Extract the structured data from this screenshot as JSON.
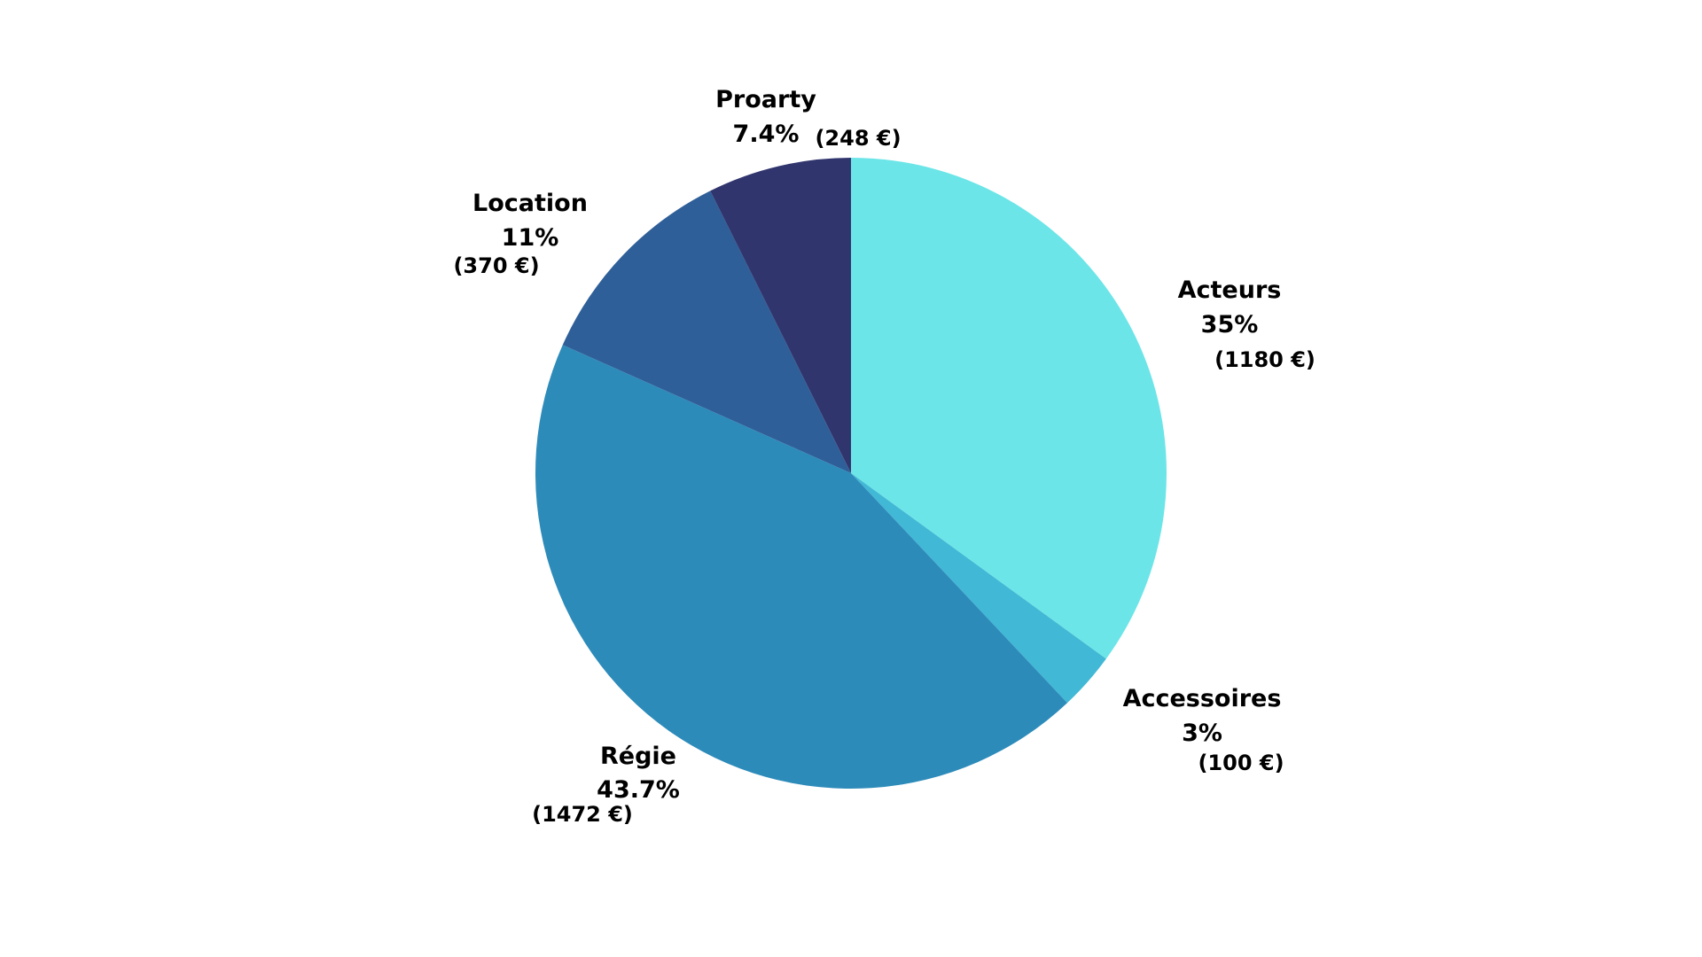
{
  "chart_data": {
    "type": "pie",
    "title": "",
    "start_angle_deg": 0,
    "direction": "clockwise",
    "slices": [
      {
        "name": "Acteurs",
        "percent_label": "35%",
        "value": 1180,
        "value_label": "(1180 €)",
        "color": "#6ce5e8"
      },
      {
        "name": "Accessoires",
        "percent_label": "3%",
        "value": 100,
        "value_label": "(100 €)",
        "color": "#41b8d5"
      },
      {
        "name": "Régie",
        "percent_label": "43.7%",
        "value": 1472,
        "value_label": "(1472 €)",
        "color": "#2d8bba"
      },
      {
        "name": "Location",
        "percent_label": "11%",
        "value": 370,
        "value_label": "(370 €)",
        "color": "#2f5f98"
      },
      {
        "name": "Proarty",
        "percent_label": "7.4%",
        "value": 248,
        "value_label": "(248 €)",
        "color": "#31356e"
      }
    ]
  }
}
